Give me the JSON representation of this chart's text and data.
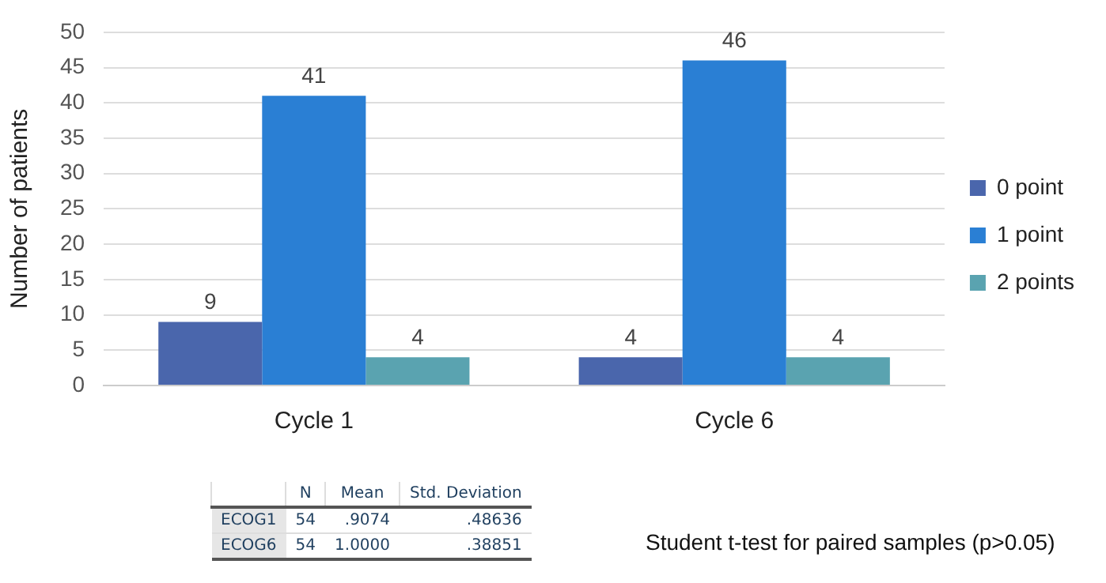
{
  "chart_data": [
    {
      "type": "bar",
      "ylabel": "Number of patients",
      "categories": [
        "Cycle 1",
        "Cycle 6"
      ],
      "series": [
        {
          "name": "0 point",
          "color": "#4a66ac",
          "values": [
            9,
            4
          ]
        },
        {
          "name": "1 point",
          "color": "#2a7fd4",
          "values": [
            41,
            46
          ]
        },
        {
          "name": "2 points",
          "color": "#5aa3b0",
          "values": [
            4,
            4
          ]
        }
      ],
      "ylim": [
        0,
        50
      ],
      "yticks": [
        0,
        5,
        10,
        15,
        20,
        25,
        30,
        35,
        40,
        45,
        50
      ],
      "grid": "y",
      "legend": "right",
      "data_labels": true
    },
    {
      "type": "other",
      "categories": [
        "N",
        "Mean",
        "Std. Deviation"
      ],
      "y_categories": [
        "ECOG1",
        "ECOG6"
      ],
      "cell_labels": [
        [
          "54",
          ".9074",
          ".48636"
        ],
        [
          "54",
          "1.0000",
          ".38851"
        ]
      ],
      "annotations": [
        "Student t-test for paired samples (p>0.05)"
      ]
    }
  ]
}
